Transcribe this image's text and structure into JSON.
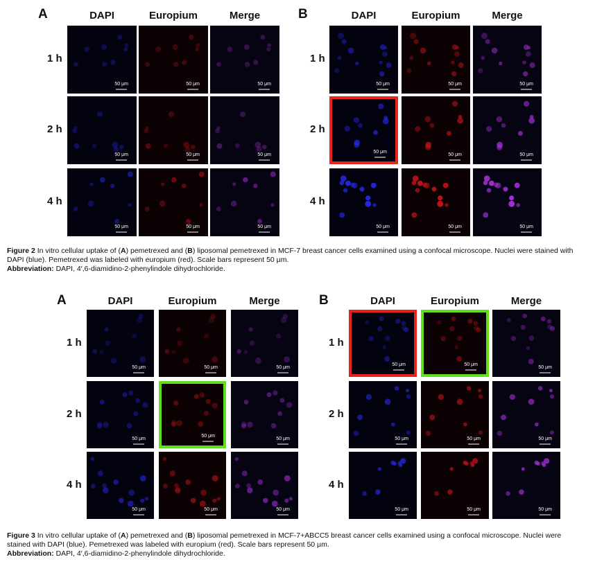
{
  "figures": [
    {
      "panels": [
        {
          "label": "A",
          "columns": [
            "DAPI",
            "Europium",
            "Merge"
          ],
          "rows": [
            "1 h",
            "2 h",
            "4 h"
          ]
        },
        {
          "label": "B",
          "columns": [
            "DAPI",
            "Europium",
            "Merge"
          ],
          "rows": [
            "1 h",
            "2 h",
            "4 h"
          ]
        }
      ],
      "scale_bar": "50 μm",
      "caption": {
        "label": "Figure 2",
        "parts": [
          " In vitro cellular uptake of (",
          "A",
          ") pemetrexed and (",
          "B",
          ") liposomal pemetrexed in MCF-7 breast cancer cells examined using a confocal microscope. Nuclei were stained with DAPI (blue). Pemetrexed was labeled with europium (red). Scale bars represent 50 µm."
        ]
      },
      "abbreviation": {
        "label": "Abbreviation:",
        "text": " DAPI, 4′,6-diamidino-2-phenylindole dihydrochloride."
      }
    },
    {
      "panels": [
        {
          "label": "A",
          "columns": [
            "DAPI",
            "Europium",
            "Merge"
          ],
          "rows": [
            "1 h",
            "2 h",
            "4 h"
          ]
        },
        {
          "label": "B",
          "columns": [
            "DAPI",
            "Europium",
            "Merge"
          ],
          "rows": [
            "1 h",
            "2 h",
            "4 h"
          ]
        }
      ],
      "scale_bar": "50 μm",
      "caption": {
        "label": "Figure 3",
        "parts": [
          " In vitro cellular uptake of (",
          "A",
          ") pemetrexed and (",
          "B",
          ") liposomal pemetrexed in MCF-7+ABCC5 breast cancer cells examined using a confocal microscope. Nuclei were stained with DAPI (blue). Pemetrexed was labeled with europium (red). Scale bars represent 50 µm."
        ]
      },
      "abbreviation": {
        "label": "Abbreviation:",
        "text": " DAPI, 4′,6-diamidino-2-phenylindole dihydrochloride."
      }
    }
  ]
}
